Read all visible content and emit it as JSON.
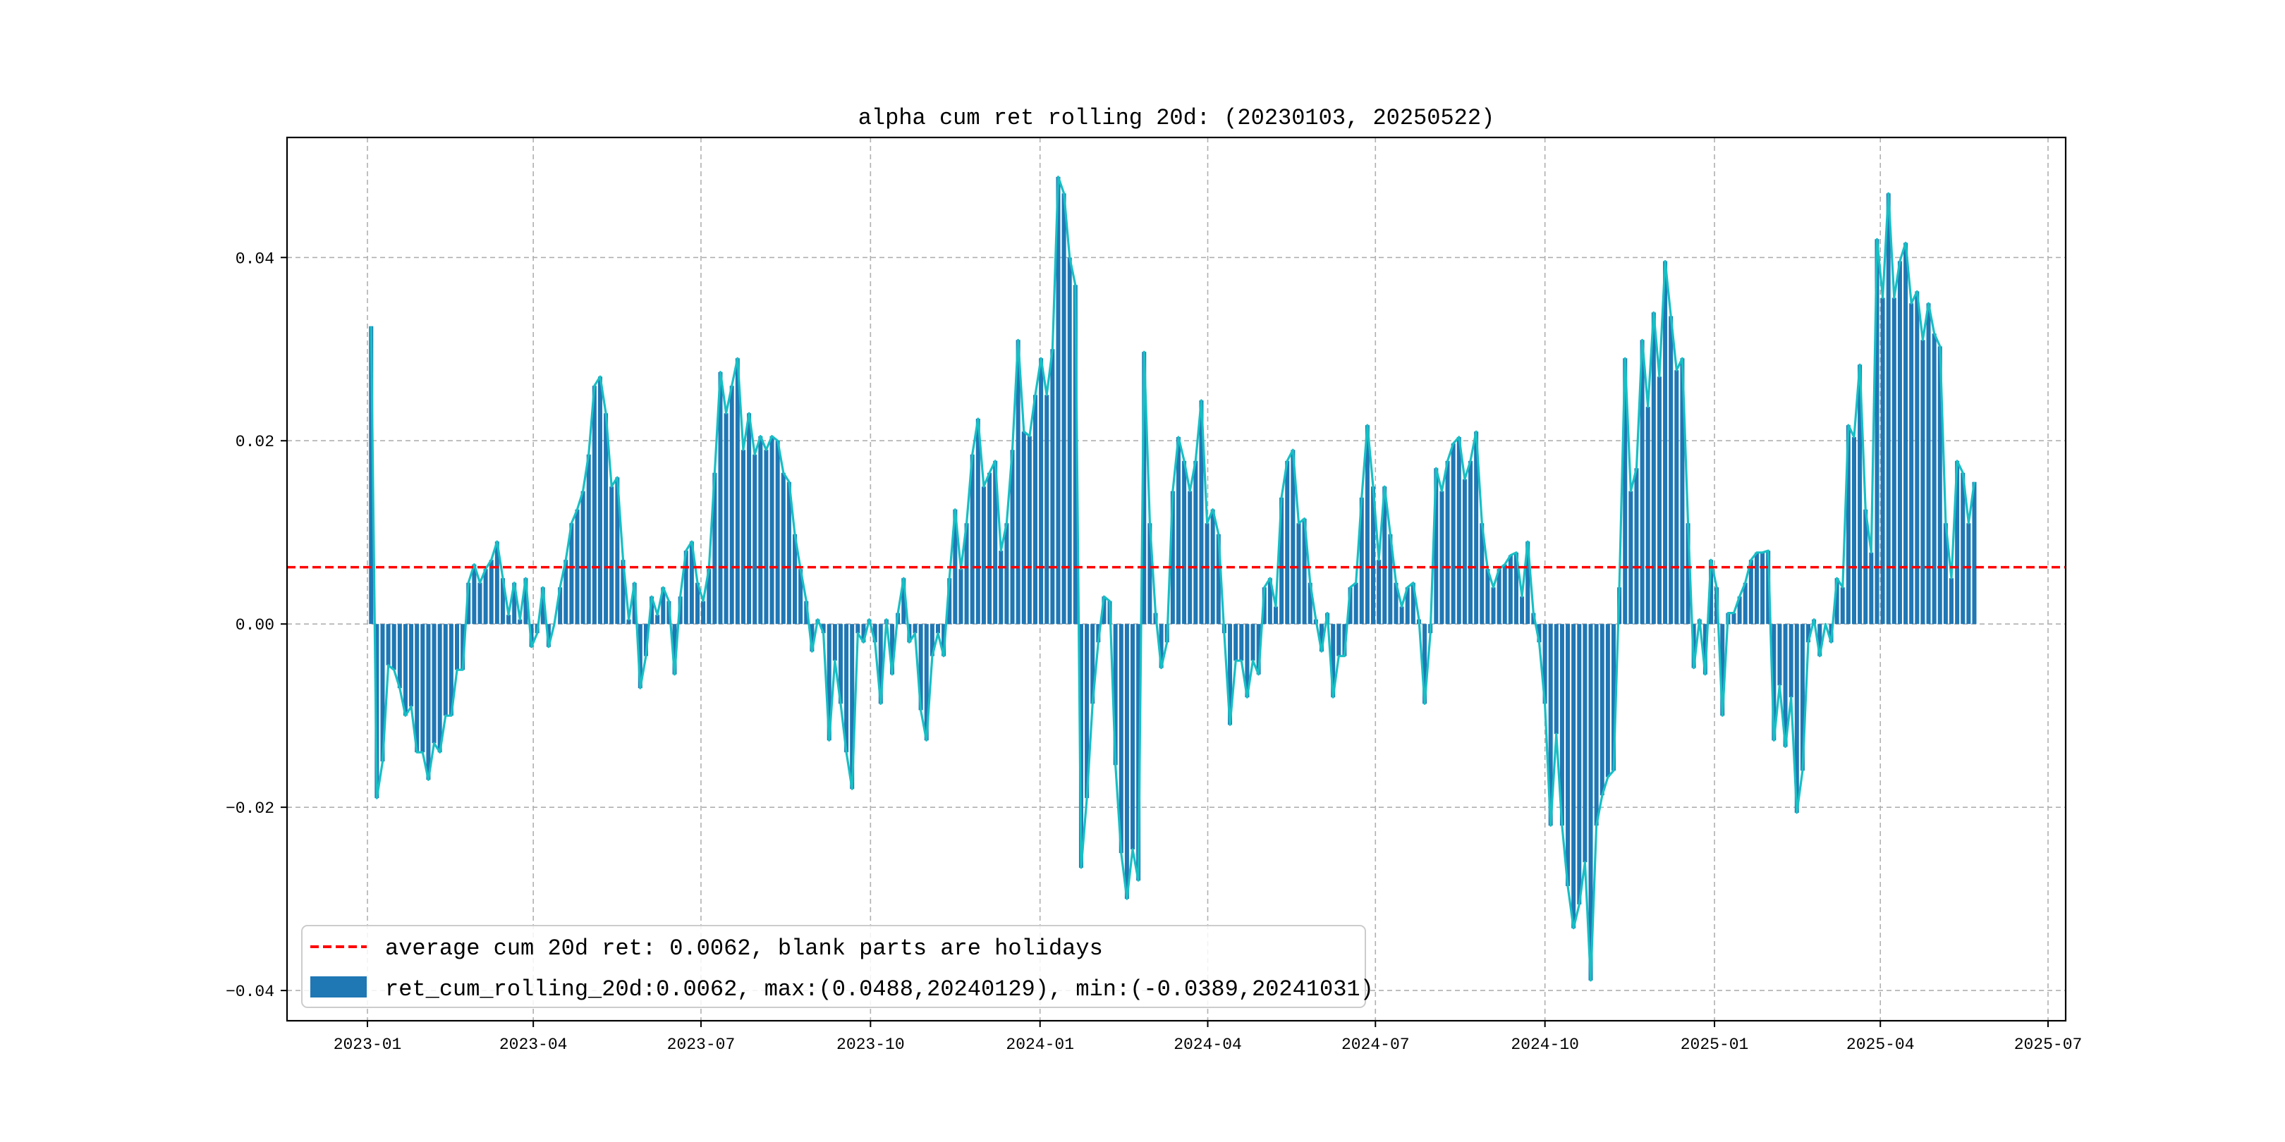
{
  "chart_data": {
    "type": "bar",
    "title": "alpha cum ret rolling 20d: (20230103, 20250522)",
    "xlabel": "",
    "ylabel": "",
    "start_date": "2023-01-03",
    "end_date": "2025-05-22",
    "xlim": [
      "2022-12-01",
      "2025-07-20"
    ],
    "ylim": [
      -0.0433,
      0.0531
    ],
    "grid": true,
    "legend_placement": "lower-left",
    "x_ticks": [
      "2023-01",
      "2023-04",
      "2023-07",
      "2023-10",
      "2024-01",
      "2024-04",
      "2024-07",
      "2024-10",
      "2025-01",
      "2025-04",
      "2025-07"
    ],
    "y_ticks": [
      -0.04,
      -0.02,
      0.0,
      0.02,
      0.04
    ],
    "y_tick_labels": [
      "−0.04",
      "−0.02",
      "0.00",
      "0.02",
      "0.04"
    ],
    "average": 0.0062,
    "legend": [
      "average cum 20d ret: 0.0062, blank parts are holidays",
      "ret_cum_rolling_20d:0.0062, max:(0.0488,20240129), min:(-0.0389,20241031)"
    ],
    "colors": {
      "bar": "#1f77b4",
      "line": "#17bfc4",
      "average": "#ff0000",
      "grid": "#b0b0b0"
    },
    "series": [
      {
        "name": "ret_cum_rolling_20d",
        "kind": "bar+line",
        "values": [
          0.0325,
          -0.019,
          -0.015,
          -0.0045,
          -0.005,
          -0.007,
          -0.01,
          -0.009,
          -0.014,
          -0.014,
          -0.017,
          -0.013,
          -0.014,
          -0.01,
          -0.01,
          -0.005,
          -0.005,
          0.0045,
          0.0065,
          0.0045,
          0.006,
          0.007,
          0.009,
          0.005,
          0.001,
          0.0045,
          0.0005,
          0.005,
          -0.0025,
          -0.001,
          0.004,
          -0.0025,
          0,
          0.004,
          0.007,
          0.011,
          0.0125,
          0.0145,
          0.0185,
          0.026,
          0.027,
          0.023,
          0.015,
          0.016,
          0.007,
          0.0005,
          0.0045,
          -0.007,
          -0.0035,
          0.003,
          0.001,
          0.004,
          0.0025,
          -0.0055,
          0.003,
          0.008,
          0.009,
          0.0045,
          0.0025,
          0.006,
          0.0165,
          0.0275,
          0.023,
          0.026,
          0.029,
          0.019,
          0.023,
          0.0185,
          0.0205,
          0.019,
          0.0205,
          0.02,
          0.0165,
          0.0155,
          0.0098,
          0.006,
          0.0025,
          -0.003,
          0.0005,
          -0.001,
          -0.0127,
          -0.004,
          -0.0087,
          -0.014,
          -0.018,
          -0.001,
          -0.002,
          0.0005,
          -0.002,
          -0.0087,
          0.0005,
          -0.0055,
          0.0012,
          0.005,
          -0.002,
          -0.001,
          -0.0094,
          -0.0127,
          -0.0035,
          -0.001,
          -0.0035,
          0.005,
          0.0125,
          0.006,
          0.011,
          0.0185,
          0.0224,
          0.015,
          0.0165,
          0.0178,
          0.008,
          0.011,
          0.019,
          0.031,
          0.021,
          0.0205,
          0.025,
          0.029,
          0.025,
          0.03,
          0.0488,
          0.047,
          0.04,
          0.037,
          -0.0266,
          -0.019,
          -0.0087,
          -0.002,
          0.003,
          0.0025,
          -0.0154,
          -0.025,
          -0.03,
          -0.0246,
          -0.028,
          0.0297,
          0.011,
          0.0012,
          -0.0048,
          -0.002,
          0.0145,
          0.0204,
          0.0178,
          0.0145,
          0.0178,
          0.0244,
          0.011,
          0.0125,
          0.0098,
          -0.001,
          -0.011,
          -0.004,
          -0.004,
          -0.008,
          -0.004,
          -0.0055,
          0.004,
          0.005,
          0.0019,
          0.0138,
          0.0178,
          0.019,
          0.011,
          0.0115,
          0.0045,
          0.0005,
          -0.003,
          0.0012,
          -0.008,
          -0.0035,
          -0.0035,
          0.004,
          0.0045,
          0.0138,
          0.0217,
          0.015,
          0.007,
          0.015,
          0.0098,
          0.0045,
          0.0019,
          0.004,
          0.0045,
          0.0005,
          -0.0087,
          -0.001,
          0.017,
          0.0145,
          0.0178,
          0.0197,
          0.0204,
          0.0158,
          0.0178,
          0.021,
          0.011,
          0.006,
          0.004,
          0.006,
          0.0065,
          0.0075,
          0.0078,
          0.003,
          0.009,
          0.0012,
          -0.002,
          -0.0087,
          -0.022,
          -0.012,
          -0.022,
          -0.0286,
          -0.0332,
          -0.0306,
          -0.026,
          -0.0389,
          -0.022,
          -0.0187,
          -0.0167,
          -0.016,
          0.004,
          0.029,
          0.0145,
          0.017,
          0.031,
          0.0237,
          0.034,
          0.027,
          0.0396,
          0.0336,
          0.0277,
          0.029,
          0.011,
          -0.0048,
          0.0005,
          -0.0055,
          0.007,
          0.004,
          -0.01,
          0.0012,
          0.0012,
          0.003,
          0.0045,
          0.007,
          0.0078,
          0.0078,
          0.008,
          -0.0127,
          -0.0067,
          -0.0134,
          -0.008,
          -0.0206,
          -0.016,
          -0.002,
          0.0005,
          -0.0035,
          0,
          -0.002,
          0.005,
          0.004,
          0.0217,
          0.0204,
          0.0283,
          0.0125,
          0.0078,
          0.042,
          0.0356,
          0.047,
          0.0356,
          0.0396,
          0.0416,
          0.035,
          0.0363,
          0.031,
          0.035,
          0.0317,
          0.0303,
          0.011,
          0.005,
          0.0178,
          0.0165,
          0.011,
          0.0155
        ]
      }
    ]
  }
}
